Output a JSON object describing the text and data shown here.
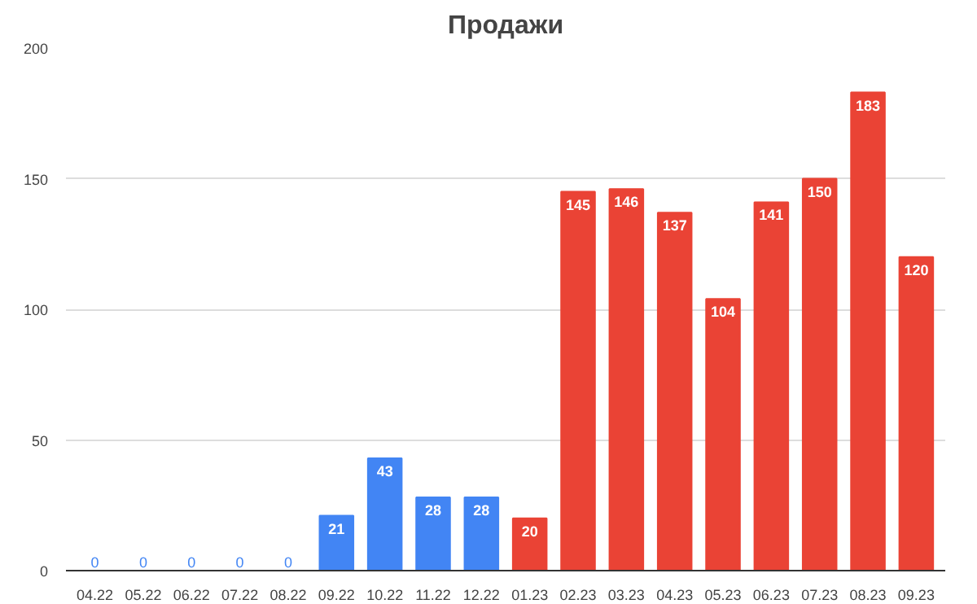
{
  "chart_data": {
    "type": "bar",
    "title": "Продажи",
    "categories": [
      "04.22",
      "05.22",
      "06.22",
      "07.22",
      "08.22",
      "09.22",
      "10.22",
      "11.22",
      "12.22",
      "01.23",
      "02.23",
      "03.23",
      "04.23",
      "05.23",
      "06.23",
      "07.23",
      "08.23",
      "09.23"
    ],
    "values": [
      0,
      0,
      0,
      0,
      0,
      21,
      43,
      28,
      28,
      20,
      145,
      146,
      137,
      104,
      141,
      150,
      183,
      120
    ],
    "colors": [
      "#4285f4",
      "#4285f4",
      "#4285f4",
      "#4285f4",
      "#4285f4",
      "#4285f4",
      "#4285f4",
      "#4285f4",
      "#4285f4",
      "#ea4335",
      "#ea4335",
      "#ea4335",
      "#ea4335",
      "#ea4335",
      "#ea4335",
      "#ea4335",
      "#ea4335",
      "#ea4335"
    ],
    "ylim": [
      0,
      200
    ],
    "yticks": [
      0,
      50,
      100,
      150,
      200
    ],
    "grid": "y",
    "data_labels": true
  }
}
